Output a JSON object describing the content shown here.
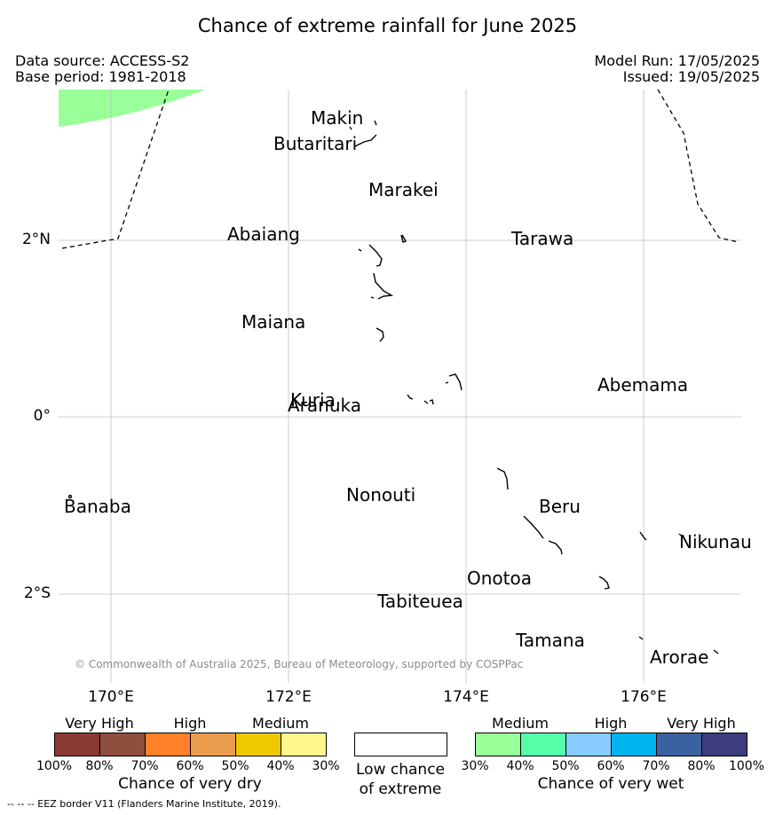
{
  "header": {
    "title": "Chance of extreme rainfall for June 2025",
    "data_source": "Data source: ACCESS-S2",
    "base_period": "Base period: 1981-2018",
    "model_run": "Model Run: 17/05/2025",
    "issued": "Issued: 19/05/2025"
  },
  "map": {
    "latitude_ticks": [
      {
        "label": "2°N",
        "value": 2
      },
      {
        "label": "0°",
        "value": 0
      },
      {
        "label": "2°S",
        "value": -2
      }
    ],
    "longitude_ticks": [
      {
        "label": "170°E",
        "value": 170
      },
      {
        "label": "172°E",
        "value": 172
      },
      {
        "label": "174°E",
        "value": 174
      },
      {
        "label": "176°E",
        "value": 176
      }
    ],
    "places": [
      {
        "name": "Makin",
        "lon": 173.0,
        "lat": 3.38
      },
      {
        "name": "Butaritari",
        "lon": 172.8,
        "lat": 3.1
      },
      {
        "name": "Marakei",
        "lon": 173.28,
        "lat": 2.0
      },
      {
        "name": "Abaiang",
        "lon": 173.0,
        "lat": 1.85
      },
      {
        "name": "Tarawa",
        "lon": 173.0,
        "lat": 1.4
      },
      {
        "name": "Maiana",
        "lon": 173.03,
        "lat": 0.92
      },
      {
        "name": "Abemama",
        "lon": 173.87,
        "lat": 0.4
      },
      {
        "name": "Kuria",
        "lon": 173.4,
        "lat": 0.22
      },
      {
        "name": "Aranuka",
        "lon": 173.6,
        "lat": 0.16
      },
      {
        "name": "Nonouti",
        "lon": 174.45,
        "lat": -0.7
      },
      {
        "name": "Banaba",
        "lon": 169.53,
        "lat": -0.87
      },
      {
        "name": "Tabiteuea",
        "lon": 174.8,
        "lat": -1.4
      },
      {
        "name": "Beru",
        "lon": 175.98,
        "lat": -1.33
      },
      {
        "name": "Nikunau",
        "lon": 176.45,
        "lat": -1.37
      },
      {
        "name": "Onotoa",
        "lon": 175.55,
        "lat": -1.83
      },
      {
        "name": "Tamana",
        "lon": 175.98,
        "lat": -2.5
      },
      {
        "name": "Arorae",
        "lon": 176.82,
        "lat": -2.64
      }
    ],
    "copyright": "© Commonwealth of Australia 2025, Bureau of Meteorology, supported by COSPPac",
    "wet_area_color": "#99ff99"
  },
  "legend": {
    "dry": {
      "headers": [
        "Very High",
        "High",
        "Medium"
      ],
      "ticks": [
        "100%",
        "80%",
        "70%",
        "60%",
        "50%",
        "40%",
        "30%"
      ],
      "colors": [
        "#8b3a33",
        "#8e4f3c",
        "#ff8026",
        "#eb9c4c",
        "#f0c800",
        "#fff68c"
      ],
      "title": "Chance of very dry"
    },
    "low": {
      "label": "Low chance of extreme",
      "color": "#ffffff"
    },
    "wet": {
      "headers": [
        "Medium",
        "High",
        "Very High"
      ],
      "ticks": [
        "30%",
        "40%",
        "50%",
        "60%",
        "70%",
        "80%",
        "100%"
      ],
      "colors": [
        "#99ff99",
        "#55ffaa",
        "#88ccff",
        "#00b4f0",
        "#3a62a0",
        "#3c3c7e"
      ],
      "title": "Chance of very wet"
    }
  },
  "footer": {
    "eez_note": "--  --  -- EEZ border V11 (Flanders Marine Institute, 2019)."
  }
}
